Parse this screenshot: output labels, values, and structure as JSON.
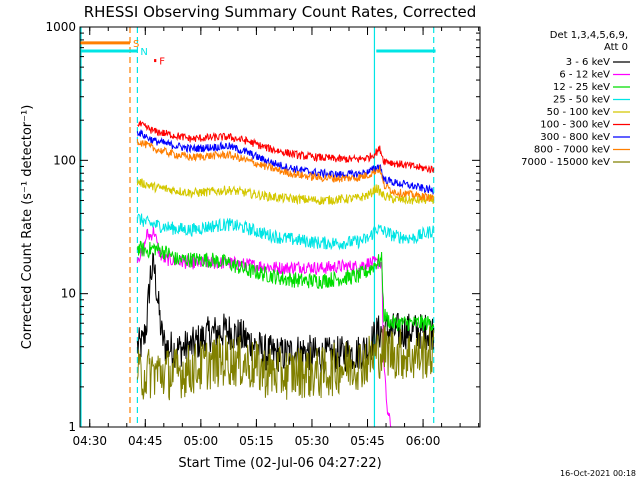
{
  "chart_data": {
    "type": "line",
    "title": "RHESSI Observing Summary Count Rates, Corrected",
    "xlabel": "Start Time (02-Jul-06 04:27:22)",
    "ylabel": "Corrected Count Rate (s⁻¹ detector⁻¹)",
    "y_scale": "log",
    "ylim": [
      1,
      1000
    ],
    "xlim_minutes": [
      0,
      108
    ],
    "x_tick_labels": [
      "04:30",
      "04:45",
      "05:00",
      "05:15",
      "05:30",
      "05:45",
      "06:00"
    ],
    "x_tick_minutes": [
      2.63,
      17.63,
      32.63,
      47.63,
      62.63,
      77.63,
      92.63
    ],
    "y_tick_labels": [
      "1",
      "10",
      "100",
      "1000"
    ],
    "y_tick_values": [
      1,
      10,
      100,
      1000
    ],
    "legend": {
      "placement": "right",
      "header": [
        "Det 1,3,4,5,6,9,",
        "Att 0"
      ],
      "entries": [
        {
          "label": "3 - 6 keV",
          "color": "#000000"
        },
        {
          "label": "6 - 12 keV",
          "color": "#ff00ff"
        },
        {
          "label": "12 - 25 keV",
          "color": "#00dd00"
        },
        {
          "label": "25 - 50 keV",
          "color": "#00e5e5"
        },
        {
          "label": "50 - 100 keV",
          "color": "#d4c800"
        },
        {
          "label": "100 - 300 keV",
          "color": "#ff0000"
        },
        {
          "label": "300 - 800 keV",
          "color": "#0000ff"
        },
        {
          "label": "800 - 7000 keV",
          "color": "#ff7f00"
        },
        {
          "label": "7000 - 15000 keV",
          "color": "#808000"
        }
      ]
    },
    "flags": [
      {
        "label": "S",
        "color": "#ff7f00",
        "from_min": 0,
        "to_min": 13.5,
        "value": 760
      },
      {
        "label": "N",
        "color": "#00e5e5",
        "from_min": 0,
        "to_min": 15.5,
        "value": 660
      },
      {
        "label": "F",
        "color": "#ff0000",
        "from_min": 20,
        "to_min": 20.6,
        "value": 560
      },
      {
        "label": "",
        "color": "#00e5e5",
        "from_min": 80,
        "to_min": 96,
        "value": 660
      }
    ],
    "vertical_lines": [
      {
        "minute": 0,
        "color": "#00e5e5",
        "style": "solid"
      },
      {
        "minute": 13.5,
        "color": "#ff7f00",
        "style": "dashed"
      },
      {
        "minute": 15.5,
        "color": "#00e5e5",
        "style": "dashed"
      },
      {
        "minute": 79.5,
        "color": "#00e5e5",
        "style": "solid"
      },
      {
        "minute": 95.5,
        "color": "#00e5e5",
        "style": "dashed"
      }
    ],
    "series": [
      {
        "name": "3 - 6 keV",
        "color": "#000000",
        "noise": 0.14,
        "x": [
          15.5,
          17,
          18,
          19,
          20,
          21,
          22,
          23,
          26,
          30,
          35,
          40,
          45,
          50,
          55,
          60,
          65,
          70,
          75,
          78,
          80,
          82,
          95.5
        ],
        "y": [
          4,
          4.2,
          6,
          14,
          16,
          9,
          5,
          4,
          3.8,
          4,
          5,
          5.3,
          4.5,
          3.6,
          3.5,
          3.7,
          3.4,
          3.5,
          3.6,
          4,
          5,
          5.3,
          5.2
        ]
      },
      {
        "name": "6 - 12 keV",
        "color": "#ff00ff",
        "noise": 0.05,
        "x": [
          15.5,
          17,
          18,
          19,
          20,
          21,
          22,
          23,
          24,
          26,
          30,
          35,
          40,
          45,
          50,
          55,
          60,
          65,
          70,
          75,
          78,
          80,
          81.5,
          82,
          83,
          84
        ],
        "y": [
          19,
          20,
          28,
          27,
          30,
          22,
          19,
          18,
          18,
          17.5,
          17,
          17,
          17,
          16.5,
          16,
          15.5,
          16,
          15.5,
          16,
          16,
          17,
          17,
          17,
          3,
          1.3,
          1
        ]
      },
      {
        "name": "12 - 25 keV",
        "color": "#00dd00",
        "noise": 0.06,
        "x": [
          15.5,
          18,
          20,
          22,
          24,
          26,
          30,
          35,
          40,
          45,
          50,
          55,
          60,
          65,
          70,
          75,
          78,
          80,
          81.5,
          82,
          84,
          90,
          95.5
        ],
        "y": [
          22,
          21,
          22,
          21,
          20,
          18,
          18,
          18,
          17,
          15,
          14,
          13,
          12.5,
          12.5,
          13,
          13.5,
          15,
          17,
          18,
          7,
          6,
          6,
          6
        ]
      },
      {
        "name": "25 - 50 keV",
        "color": "#00e5e5",
        "noise": 0.05,
        "x": [
          15.5,
          18,
          20,
          25,
          30,
          35,
          40,
          45,
          50,
          55,
          60,
          65,
          70,
          75,
          78,
          80,
          85,
          90,
          95.5
        ],
        "y": [
          37,
          34,
          33,
          31,
          30,
          32,
          33,
          31,
          28,
          26,
          25,
          24,
          24,
          24.5,
          26,
          31,
          27,
          26,
          30
        ]
      },
      {
        "name": "50 - 100 keV",
        "color": "#d4c800",
        "noise": 0.035,
        "x": [
          15.5,
          18,
          20,
          25,
          30,
          35,
          40,
          45,
          50,
          55,
          60,
          65,
          70,
          75,
          78,
          80,
          81,
          82,
          85,
          90,
          95.5
        ],
        "y": [
          69,
          66,
          63,
          60,
          57,
          58,
          60,
          57,
          54,
          52,
          51,
          50,
          51,
          52,
          55,
          62,
          58,
          54,
          51,
          50,
          51
        ]
      },
      {
        "name": "100 - 300 keV",
        "color": "#ff0000",
        "noise": 0.03,
        "x": [
          15.5,
          18,
          20,
          25,
          30,
          35,
          40,
          45,
          50,
          55,
          60,
          65,
          70,
          75,
          78,
          80,
          81,
          82,
          85,
          90,
          95.5
        ],
        "y": [
          190,
          175,
          165,
          155,
          145,
          148,
          150,
          140,
          125,
          115,
          108,
          105,
          102,
          102,
          105,
          115,
          122,
          100,
          95,
          90,
          85
        ]
      },
      {
        "name": "300 - 800 keV",
        "color": "#0000ff",
        "noise": 0.03,
        "x": [
          15.5,
          18,
          20,
          25,
          30,
          35,
          40,
          45,
          50,
          55,
          60,
          65,
          70,
          75,
          78,
          80,
          81,
          82,
          85,
          90,
          95.5
        ],
        "y": [
          165,
          150,
          140,
          130,
          122,
          125,
          128,
          115,
          100,
          90,
          84,
          80,
          78,
          79,
          82,
          88,
          92,
          72,
          68,
          64,
          59
        ]
      },
      {
        "name": "800 - 7000 keV",
        "color": "#ff7f00",
        "noise": 0.03,
        "x": [
          15.5,
          18,
          20,
          25,
          30,
          35,
          40,
          45,
          50,
          55,
          60,
          65,
          70,
          75,
          78,
          80,
          81,
          82,
          85,
          90,
          95.5
        ],
        "y": [
          140,
          130,
          122,
          112,
          105,
          108,
          110,
          100,
          90,
          82,
          77,
          74,
          73,
          74,
          78,
          84,
          86,
          65,
          58,
          55,
          52
        ]
      },
      {
        "name": "7000 - 15000 keV",
        "color": "#808000",
        "noise": 0.2,
        "x": [
          15.5,
          20,
          25,
          30,
          35,
          40,
          45,
          50,
          55,
          60,
          65,
          70,
          75,
          78,
          80,
          82,
          85,
          90,
          95.5
        ],
        "y": [
          2.4,
          2.6,
          2.5,
          2.7,
          3,
          3.2,
          3,
          2.6,
          2.5,
          2.6,
          2.5,
          2.8,
          3,
          3.2,
          3.5,
          3.8,
          3.6,
          3.4,
          3.7
        ]
      }
    ]
  },
  "footer_date": "16-Oct-2021 00:18"
}
